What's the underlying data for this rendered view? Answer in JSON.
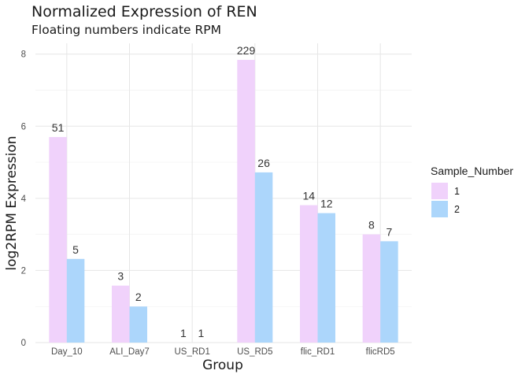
{
  "chart_data": {
    "type": "bar",
    "title": "Normalized Expression of REN",
    "subtitle": "Floating numbers indicate RPM",
    "xlabel": "Group",
    "ylabel": "log2RPM Expression",
    "categories": [
      "Day_10",
      "ALI_Day7",
      "US_RD1",
      "US_RD5",
      "flic_RD1",
      "flicRD5"
    ],
    "ylim": [
      0,
      8.3
    ],
    "yticks": [
      0,
      2,
      4,
      6,
      8
    ],
    "grid": true,
    "legend": {
      "title": "Sample_Number",
      "position": "right"
    },
    "series": [
      {
        "name": "1",
        "color": "#f0d2fb",
        "values": [
          5.7,
          1.58,
          0,
          7.84,
          3.81,
          3.0
        ],
        "labels": [
          "51",
          "3",
          "1",
          "229",
          "14",
          "8"
        ]
      },
      {
        "name": "2",
        "color": "#acd6fb",
        "values": [
          2.32,
          1.0,
          0,
          4.72,
          3.59,
          2.81
        ],
        "labels": [
          "5",
          "2",
          "1",
          "26",
          "12",
          "7"
        ]
      }
    ]
  }
}
